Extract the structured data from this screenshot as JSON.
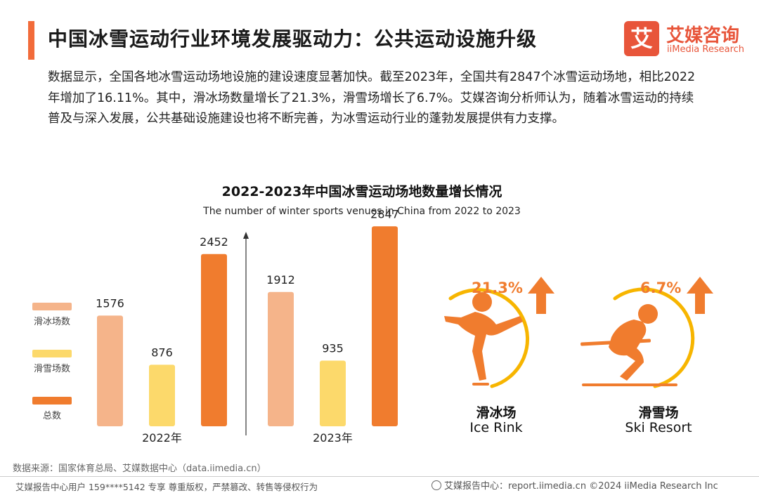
{
  "header": {
    "title": "中国冰雪运动行业环境发展驱动力：公共运动设施升级",
    "logo_mark": "艾",
    "logo_cn": "艾媒咨询",
    "logo_en": "iiMedia Research"
  },
  "intro": "数据显示，全国各地冰雪运动场地设施的建设速度显著加快。截至2023年，全国共有2847个冰雪运动场地，相比2022年增加了16.11%。其中，滑冰场数量增长了21.3%，滑雪场增长了6.7%。艾媒咨询分析师认为，随着冰雪运动的持续普及与深入发展，公共基础设施建设也将不断完善，为冰雪运动行业的蓬勃发展提供有力支撑。",
  "chart_data": {
    "type": "bar",
    "title": "2022-2023年中国冰雪运动场地数量增长情况",
    "subtitle": "The number of winter sports venues in China from 2022 to 2023",
    "categories": [
      "2022年",
      "2023年"
    ],
    "series": [
      {
        "name": "滑冰场数",
        "color": "#f5b48a",
        "values": [
          1576,
          1912
        ]
      },
      {
        "name": "滑雪场数",
        "color": "#fcd96b",
        "values": [
          876,
          935
        ]
      },
      {
        "name": "总数",
        "color": "#f07c2e",
        "values": [
          2452,
          2847
        ]
      }
    ],
    "ylim": [
      0,
      3000
    ],
    "legend_position": "left"
  },
  "growth": {
    "ice": {
      "pct": "21.3%",
      "cn": "滑冰场",
      "en": "Ice Rink"
    },
    "ski": {
      "pct": "6.7%",
      "cn": "滑雪场",
      "en": "Ski Resort"
    }
  },
  "colors": {
    "accent": "#f26b3a",
    "orange": "#f07c2e",
    "gold": "#f7b500",
    "brand": "#e8553a"
  },
  "footer": {
    "source": "数据来源：国家体育总局、艾媒数据中心（data.iimedia.cn）",
    "left": "艾媒报告中心用户 159****5142 专享 尊重版权，严禁篡改、转售等侵权行为",
    "right": "艾媒报告中心：report.iimedia.cn ©2024 iiMedia Research Inc"
  }
}
